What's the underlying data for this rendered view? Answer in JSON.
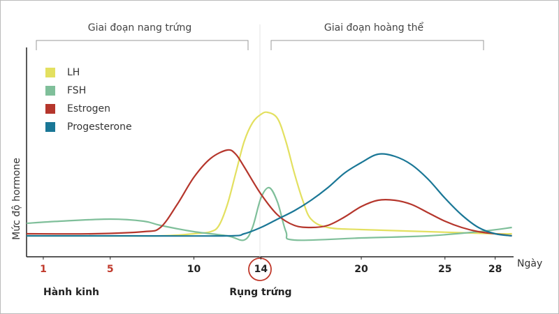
{
  "chart_data": {
    "type": "line",
    "x_label": "Ngày",
    "y_label": "Mức độ hormone",
    "phases": [
      "Giai đoạn nang trứng",
      "Giai đoạn hoàng thể"
    ],
    "annotations": [
      "Hành kinh",
      "Rụng trứng"
    ],
    "xlim": [
      0,
      29.1
    ],
    "ylim": [
      0,
      100
    ],
    "xticks": [
      1,
      5,
      10,
      14,
      20,
      25,
      28
    ],
    "series": [
      {
        "name": "LH",
        "color": "#e3e060",
        "x": [
          0,
          4,
          8,
          10,
          11,
          11.5,
          12,
          12.5,
          13,
          13.5,
          14,
          14.4,
          15,
          15.5,
          16,
          16.5,
          17,
          18,
          20,
          24,
          28,
          29
        ],
        "values": [
          10,
          10,
          10,
          11,
          12,
          15,
          25,
          40,
          55,
          64,
          68,
          69,
          66,
          55,
          40,
          27,
          18,
          14,
          13,
          12,
          11,
          11
        ]
      },
      {
        "name": "FSH",
        "color": "#7fbf9a",
        "x": [
          0,
          2,
          5,
          7,
          8,
          10,
          12,
          13,
          13.5,
          14,
          14.5,
          15,
          15.5,
          16,
          20,
          24,
          27,
          29
        ],
        "values": [
          16,
          17,
          18,
          17,
          15,
          12,
          10,
          8,
          14,
          28,
          33,
          26,
          12,
          8,
          9,
          10,
          12,
          14
        ]
      },
      {
        "name": "Estrogen",
        "color": "#b5362c",
        "x": [
          0,
          4,
          7,
          8,
          9,
          10,
          11,
          12,
          12.5,
          13,
          14,
          15,
          16,
          17,
          18,
          19,
          20,
          21,
          22,
          23,
          24,
          25,
          26,
          27,
          28,
          29
        ],
        "values": [
          11,
          11,
          12,
          14,
          25,
          38,
          47,
          51,
          49,
          43,
          30,
          20,
          15,
          14,
          15,
          19,
          24,
          27,
          27,
          25,
          21,
          17,
          14,
          12,
          11,
          10
        ]
      },
      {
        "name": "Progesterone",
        "color": "#1a7796",
        "x": [
          0,
          6,
          12,
          13,
          14,
          15,
          16,
          17,
          18,
          19,
          20,
          21,
          22,
          23,
          24,
          25,
          26,
          27,
          28,
          29
        ],
        "values": [
          10,
          10,
          10,
          11,
          14,
          18,
          22,
          27,
          33,
          40,
          45,
          49,
          48,
          44,
          37,
          28,
          20,
          14,
          11,
          10
        ]
      }
    ]
  }
}
